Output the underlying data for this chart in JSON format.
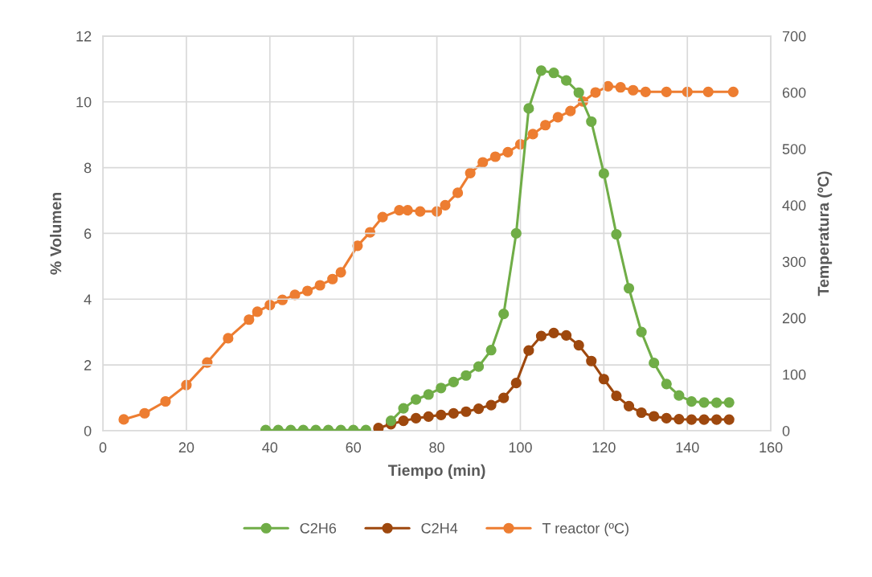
{
  "chart_data": {
    "type": "line",
    "xlabel": "Tiempo (min)",
    "ylabel": "% Volumen",
    "y2label": "Temperatura (ºC)",
    "xlim": [
      0,
      160
    ],
    "xticks": [
      0,
      20,
      40,
      60,
      80,
      100,
      120,
      140,
      160
    ],
    "ylim": [
      0,
      12
    ],
    "yticks": [
      0,
      2,
      4,
      6,
      8,
      10,
      12
    ],
    "y2lim": [
      0,
      700
    ],
    "y2ticks": [
      0,
      100,
      200,
      300,
      400,
      500,
      600,
      700
    ],
    "grid": true,
    "legend": "bottom",
    "marker": "circle",
    "line_style": "solid",
    "series": [
      {
        "name": "C2H6",
        "color": "#70ad47",
        "x": [
          39,
          42,
          45,
          48,
          51,
          54,
          57,
          60,
          63,
          66,
          69,
          72,
          75,
          78,
          81,
          84,
          87,
          90,
          93,
          96,
          99,
          102,
          105,
          108,
          111,
          114,
          117,
          120,
          123,
          126,
          129,
          132,
          135,
          138,
          141,
          144,
          147,
          150
        ],
        "values": [
          0.02,
          0.02,
          0.02,
          0.02,
          0.02,
          0.02,
          0.02,
          0.02,
          0.02,
          null,
          0.3,
          0.68,
          0.95,
          1.1,
          1.3,
          1.48,
          1.68,
          1.95,
          2.45,
          3.55,
          6.0,
          9.8,
          10.95,
          10.88,
          10.65,
          10.28,
          9.4,
          7.82,
          5.97,
          4.33,
          3.0,
          2.06,
          1.42,
          1.07,
          0.89,
          0.86,
          0.85,
          0.86
        ]
      },
      {
        "name": "C2H4",
        "color": "#9e480e",
        "x": [
          66,
          69,
          72,
          75,
          78,
          81,
          84,
          87,
          90,
          93,
          96,
          99,
          102,
          105,
          108,
          111,
          114,
          117,
          120,
          123,
          126,
          129,
          132,
          135,
          138,
          141,
          144,
          147,
          150
        ],
        "values": [
          0.08,
          0.2,
          0.3,
          0.38,
          0.43,
          0.48,
          0.53,
          0.58,
          0.67,
          0.78,
          1.0,
          1.45,
          2.44,
          2.88,
          2.97,
          2.9,
          2.6,
          2.12,
          1.57,
          1.06,
          0.75,
          0.55,
          0.44,
          0.38,
          0.35,
          0.34,
          0.34,
          0.34,
          0.34
        ]
      },
      {
        "name": "T reactor (ºC)",
        "color": "#ed7d31",
        "axis": "y2",
        "x": [
          5,
          10,
          15,
          20,
          25,
          30,
          35,
          37,
          40,
          43,
          46,
          49,
          52,
          55,
          57,
          61,
          64,
          67,
          71,
          73,
          76,
          80,
          82,
          85,
          88,
          91,
          94,
          97,
          100,
          103,
          106,
          109,
          112,
          115,
          118,
          121,
          124,
          127,
          130,
          135,
          140,
          145,
          151
        ],
        "values": [
          20,
          31,
          52,
          81,
          121,
          164,
          197,
          211,
          223,
          232,
          241,
          248,
          258,
          269,
          281,
          328,
          352,
          379,
          391,
          391,
          389,
          389,
          400,
          422,
          457,
          476,
          486,
          494,
          508,
          526,
          542,
          556,
          567,
          584,
          600,
          611,
          609,
          604,
          601,
          601,
          601,
          601,
          601
        ]
      }
    ]
  }
}
